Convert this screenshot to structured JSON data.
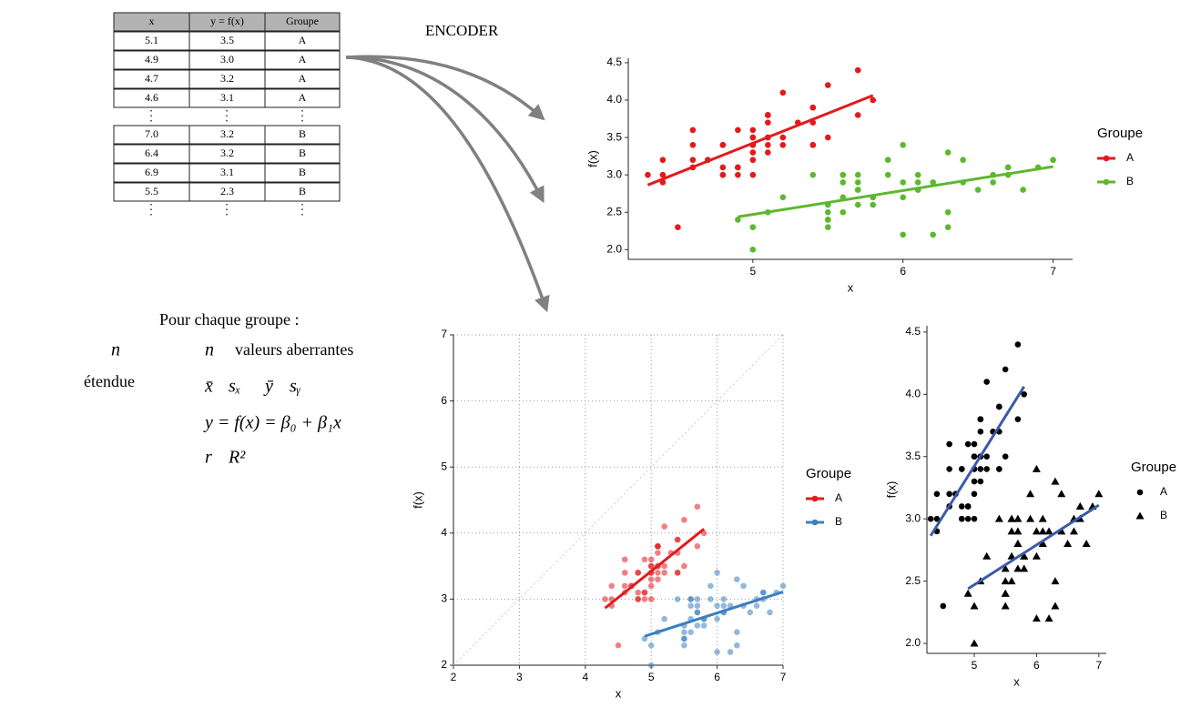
{
  "table": {
    "header": [
      "x",
      "y = f(x)",
      "Groupe"
    ],
    "groups": [
      {
        "rows": [
          [
            "5.1",
            "3.5",
            "A"
          ],
          [
            "4.9",
            "3.0",
            "A"
          ],
          [
            "4.7",
            "3.2",
            "A"
          ],
          [
            "4.6",
            "3.1",
            "A"
          ]
        ]
      },
      {
        "rows": [
          [
            "7.0",
            "3.2",
            "B"
          ],
          [
            "6.4",
            "3.2",
            "B"
          ],
          [
            "6.9",
            "3.1",
            "B"
          ],
          [
            "5.5",
            "2.3",
            "B"
          ]
        ]
      }
    ]
  },
  "encoder_label": "ENCODER",
  "summary": {
    "title": "Pour chaque groupe :",
    "left": [
      "n",
      "étendue"
    ],
    "right": [
      [
        "n",
        "valeurs aberrantes"
      ],
      [
        "x̄",
        "sₓ",
        "ȳ",
        "sᵧ"
      ],
      [
        "y = f(x) = β₀ + β₁x"
      ],
      [
        "r",
        "R²"
      ]
    ]
  },
  "chart_data": [
    {
      "type": "scatter",
      "x_label": "x",
      "y_label": "f(x)",
      "legend_title": "Groupe",
      "xlim": [
        4.17,
        7.13
      ],
      "ylim": [
        1.87,
        4.56
      ],
      "xticks": [
        5,
        6,
        7
      ],
      "yticks": [
        {
          "value": 2,
          "label": "2.0"
        },
        2.5,
        {
          "value": 3,
          "label": "3.0"
        },
        3.5,
        {
          "value": 4,
          "label": "4.0"
        },
        4.5
      ],
      "grid": false,
      "point_alpha": 1,
      "regression": true,
      "series": [
        {
          "name": "A",
          "color": "#e31a1c",
          "marker": "circle",
          "x": [
            5.1,
            4.9,
            4.7,
            4.6,
            5.0,
            5.4,
            4.6,
            5.0,
            4.4,
            4.9,
            5.4,
            4.8,
            4.8,
            4.3,
            5.8,
            5.7,
            5.4,
            5.1,
            5.7,
            5.1,
            5.4,
            5.1,
            4.6,
            5.1,
            4.8,
            5.0,
            5.0,
            5.2,
            5.2,
            4.7,
            4.8,
            5.4,
            5.2,
            5.5,
            4.9,
            5.0,
            5.5,
            4.9,
            4.4,
            5.1,
            5.0,
            4.5,
            4.4,
            5.0,
            5.1,
            4.8,
            5.1,
            4.6,
            5.3,
            5.0
          ],
          "values": [
            3.5,
            3.0,
            3.2,
            3.1,
            3.6,
            3.9,
            3.4,
            3.4,
            2.9,
            3.1,
            3.7,
            3.4,
            3.0,
            3.0,
            4.0,
            4.4,
            3.9,
            3.5,
            3.8,
            3.8,
            3.4,
            3.7,
            3.6,
            3.3,
            3.4,
            3.0,
            3.4,
            3.5,
            3.4,
            3.2,
            3.1,
            3.4,
            4.1,
            4.2,
            3.1,
            3.2,
            3.5,
            3.6,
            3.0,
            3.4,
            3.5,
            2.3,
            3.2,
            3.5,
            3.8,
            3.0,
            3.8,
            3.2,
            3.7,
            3.3
          ]
        },
        {
          "name": "B",
          "color": "#5cb82e",
          "marker": "circle",
          "x": [
            7.0,
            6.4,
            6.9,
            5.5,
            6.5,
            5.7,
            6.3,
            4.9,
            6.6,
            5.2,
            5.0,
            5.9,
            6.0,
            6.1,
            5.6,
            6.7,
            5.6,
            5.8,
            6.2,
            5.6,
            5.9,
            6.1,
            6.3,
            6.1,
            6.4,
            6.6,
            6.8,
            6.7,
            6.0,
            5.7,
            5.5,
            5.5,
            5.8,
            6.0,
            5.4,
            6.0,
            6.7,
            6.3,
            5.6,
            5.5,
            5.5,
            6.1,
            5.8,
            5.0,
            5.6,
            5.7,
            5.7,
            6.2,
            5.1,
            5.7
          ],
          "values": [
            3.2,
            3.2,
            3.1,
            2.3,
            2.8,
            2.8,
            3.3,
            2.4,
            2.9,
            2.7,
            2.0,
            3.0,
            2.2,
            2.9,
            2.9,
            3.1,
            3.0,
            2.7,
            2.2,
            2.5,
            3.2,
            2.8,
            2.5,
            2.8,
            2.9,
            3.0,
            2.8,
            3.0,
            2.9,
            2.6,
            2.4,
            2.4,
            2.7,
            2.7,
            3.0,
            3.4,
            3.1,
            2.3,
            3.0,
            2.5,
            2.6,
            3.0,
            2.6,
            2.3,
            2.7,
            3.0,
            2.9,
            2.9,
            2.5,
            2.8
          ]
        }
      ]
    },
    {
      "type": "scatter",
      "x_label": "x",
      "y_label": "f(x)",
      "legend_title": "Groupe",
      "xlim": [
        2,
        7
      ],
      "ylim": [
        2,
        7
      ],
      "xticks": [
        2,
        3,
        4,
        5,
        6,
        7
      ],
      "yticks": [
        2,
        3,
        4,
        5,
        6,
        7
      ],
      "grid": true,
      "identity_line": true,
      "point_alpha": 0.55,
      "regression": true,
      "series": [
        {
          "name": "A",
          "color": "#e31a1c",
          "marker": "circle",
          "x": [
            5.1,
            4.9,
            4.7,
            4.6,
            5.0,
            5.4,
            4.6,
            5.0,
            4.4,
            4.9,
            5.4,
            4.8,
            4.8,
            4.3,
            5.8,
            5.7,
            5.4,
            5.1,
            5.7,
            5.1,
            5.4,
            5.1,
            4.6,
            5.1,
            4.8,
            5.0,
            5.0,
            5.2,
            5.2,
            4.7,
            4.8,
            5.4,
            5.2,
            5.5,
            4.9,
            5.0,
            5.5,
            4.9,
            4.4,
            5.1,
            5.0,
            4.5,
            4.4,
            5.0,
            5.1,
            4.8,
            5.1,
            4.6,
            5.3,
            5.0
          ],
          "values": [
            3.5,
            3.0,
            3.2,
            3.1,
            3.6,
            3.9,
            3.4,
            3.4,
            2.9,
            3.1,
            3.7,
            3.4,
            3.0,
            3.0,
            4.0,
            4.4,
            3.9,
            3.5,
            3.8,
            3.8,
            3.4,
            3.7,
            3.6,
            3.3,
            3.4,
            3.0,
            3.4,
            3.5,
            3.4,
            3.2,
            3.1,
            3.4,
            4.1,
            4.2,
            3.1,
            3.2,
            3.5,
            3.6,
            3.0,
            3.4,
            3.5,
            2.3,
            3.2,
            3.5,
            3.8,
            3.0,
            3.8,
            3.2,
            3.7,
            3.3
          ]
        },
        {
          "name": "B",
          "color": "#3a7fbf",
          "marker": "circle",
          "x": [
            7.0,
            6.4,
            6.9,
            5.5,
            6.5,
            5.7,
            6.3,
            4.9,
            6.6,
            5.2,
            5.0,
            5.9,
            6.0,
            6.1,
            5.6,
            6.7,
            5.6,
            5.8,
            6.2,
            5.6,
            5.9,
            6.1,
            6.3,
            6.1,
            6.4,
            6.6,
            6.8,
            6.7,
            6.0,
            5.7,
            5.5,
            5.5,
            5.8,
            6.0,
            5.4,
            6.0,
            6.7,
            6.3,
            5.6,
            5.5,
            5.5,
            6.1,
            5.8,
            5.0,
            5.6,
            5.7,
            5.7,
            6.2,
            5.1,
            5.7
          ],
          "values": [
            3.2,
            3.2,
            3.1,
            2.3,
            2.8,
            2.8,
            3.3,
            2.4,
            2.9,
            2.7,
            2.0,
            3.0,
            2.2,
            2.9,
            2.9,
            3.1,
            3.0,
            2.7,
            2.2,
            2.5,
            3.2,
            2.8,
            2.5,
            2.8,
            2.9,
            3.0,
            2.8,
            3.0,
            2.9,
            2.6,
            2.4,
            2.4,
            2.7,
            2.7,
            3.0,
            3.4,
            3.1,
            2.3,
            3.0,
            2.5,
            2.6,
            3.0,
            2.6,
            2.3,
            2.7,
            3.0,
            2.9,
            2.9,
            2.5,
            2.8
          ]
        }
      ]
    },
    {
      "type": "scatter",
      "x_label": "x",
      "y_label": "f(x)",
      "legend_title": "Groupe",
      "xlim": [
        4.24,
        7.12
      ],
      "ylim": [
        1.92,
        4.55
      ],
      "xticks": [
        5,
        6,
        7
      ],
      "yticks": [
        {
          "value": 2,
          "label": "2.0"
        },
        2.5,
        {
          "value": 3,
          "label": "3.0"
        },
        3.5,
        {
          "value": 4,
          "label": "4.0"
        },
        4.5
      ],
      "grid": false,
      "point_alpha": 1,
      "regression": true,
      "line_color": "#3b5ba7",
      "series": [
        {
          "name": "A",
          "color": "#000000",
          "marker": "circle",
          "x": [
            5.1,
            4.9,
            4.7,
            4.6,
            5.0,
            5.4,
            4.6,
            5.0,
            4.4,
            4.9,
            5.4,
            4.8,
            4.8,
            4.3,
            5.8,
            5.7,
            5.4,
            5.1,
            5.7,
            5.1,
            5.4,
            5.1,
            4.6,
            5.1,
            4.8,
            5.0,
            5.0,
            5.2,
            5.2,
            4.7,
            4.8,
            5.4,
            5.2,
            5.5,
            4.9,
            5.0,
            5.5,
            4.9,
            4.4,
            5.1,
            5.0,
            4.5,
            4.4,
            5.0,
            5.1,
            4.8,
            5.1,
            4.6,
            5.3,
            5.0
          ],
          "values": [
            3.5,
            3.0,
            3.2,
            3.1,
            3.6,
            3.9,
            3.4,
            3.4,
            2.9,
            3.1,
            3.7,
            3.4,
            3.0,
            3.0,
            4.0,
            4.4,
            3.9,
            3.5,
            3.8,
            3.8,
            3.4,
            3.7,
            3.6,
            3.3,
            3.4,
            3.0,
            3.4,
            3.5,
            3.4,
            3.2,
            3.1,
            3.4,
            4.1,
            4.2,
            3.1,
            3.2,
            3.5,
            3.6,
            3.0,
            3.4,
            3.5,
            2.3,
            3.2,
            3.5,
            3.8,
            3.0,
            3.8,
            3.2,
            3.7,
            3.3
          ]
        },
        {
          "name": "B",
          "color": "#000000",
          "marker": "triangle",
          "x": [
            7.0,
            6.4,
            6.9,
            5.5,
            6.5,
            5.7,
            6.3,
            4.9,
            6.6,
            5.2,
            5.0,
            5.9,
            6.0,
            6.1,
            5.6,
            6.7,
            5.6,
            5.8,
            6.2,
            5.6,
            5.9,
            6.1,
            6.3,
            6.1,
            6.4,
            6.6,
            6.8,
            6.7,
            6.0,
            5.7,
            5.5,
            5.5,
            5.8,
            6.0,
            5.4,
            6.0,
            6.7,
            6.3,
            5.6,
            5.5,
            5.5,
            6.1,
            5.8,
            5.0,
            5.6,
            5.7,
            5.7,
            6.2,
            5.1,
            5.7
          ],
          "values": [
            3.2,
            3.2,
            3.1,
            2.3,
            2.8,
            2.8,
            3.3,
            2.4,
            2.9,
            2.7,
            2.0,
            3.0,
            2.2,
            2.9,
            2.9,
            3.1,
            3.0,
            2.7,
            2.2,
            2.5,
            3.2,
            2.8,
            2.5,
            2.8,
            2.9,
            3.0,
            2.8,
            3.0,
            2.9,
            2.6,
            2.4,
            2.4,
            2.7,
            2.7,
            3.0,
            3.4,
            3.1,
            2.3,
            3.0,
            2.5,
            2.6,
            3.0,
            2.6,
            2.3,
            2.7,
            3.0,
            2.9,
            2.9,
            2.5,
            2.8
          ]
        }
      ]
    }
  ]
}
